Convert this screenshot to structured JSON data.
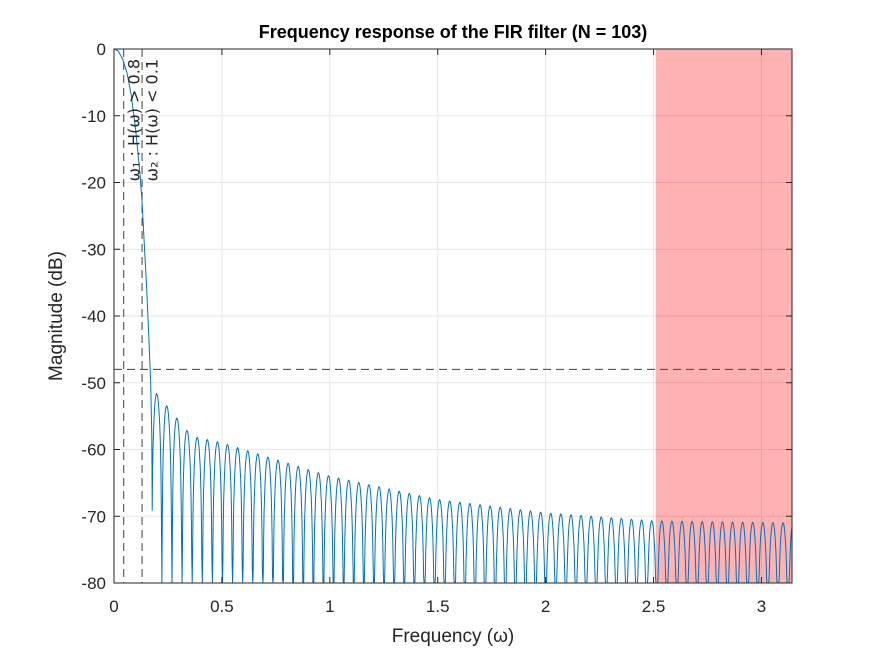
{
  "chart_data": {
    "type": "line",
    "title": "Frequency response of the FIR filter (N = 103)",
    "xlabel": "Frequency (ω)",
    "ylabel": "Magnitude (dB)",
    "xlim": [
      0,
      3.14159
    ],
    "ylim": [
      -80,
      0
    ],
    "xticks": [
      0,
      0.5,
      1,
      1.5,
      2,
      2.5,
      3
    ],
    "xtick_labels": [
      "0",
      "0.5",
      "1",
      "1.5",
      "2",
      "2.5",
      "3"
    ],
    "yticks": [
      0,
      -10,
      -20,
      -30,
      -40,
      -50,
      -60,
      -70,
      -80
    ],
    "ytick_labels": [
      "0",
      "-10",
      "-20",
      "-30",
      "-40",
      "-50",
      "-60",
      "-70",
      "-80"
    ],
    "grid": true,
    "series": [
      {
        "color": "#0072BD",
        "mainlobe": {
          "x": [
            0,
            0.02,
            0.04,
            0.06,
            0.08,
            0.1,
            0.12,
            0.13,
            0.14,
            0.15,
            0.16,
            0.17
          ],
          "y": [
            0,
            -0.3,
            -1.5,
            -3.5,
            -7,
            -12,
            -18.5,
            -23,
            -29,
            -35,
            -42,
            -50
          ]
        },
        "first_null": 0.175,
        "first_sidelobe": {
          "x": 0.195,
          "y": -51.5
        },
        "sidelobe_spacing": 0.0468,
        "sidelobe_peaks": [
          {
            "x": 0.195,
            "y": -51.5
          },
          {
            "x": 0.36,
            "y": -58
          },
          {
            "x": 0.5,
            "y": -59
          },
          {
            "x": 1.0,
            "y": -64
          },
          {
            "x": 1.5,
            "y": -67.5
          },
          {
            "x": 2.0,
            "y": -69.5
          },
          {
            "x": 2.5,
            "y": -70.7
          },
          {
            "x": 3.14159,
            "y": -71
          }
        ]
      }
    ],
    "annotations": {
      "hline_y": -48,
      "vlines_x": [
        0.045,
        0.13
      ],
      "vline_labels": [
        "ω₁ : H(ω) > 0.8",
        "ω₂ : H(ω) < 0.1"
      ],
      "stopband_region": {
        "x0": 2.51,
        "x1": 3.14159,
        "color": "#FF0000",
        "opacity": 0.3
      }
    }
  }
}
